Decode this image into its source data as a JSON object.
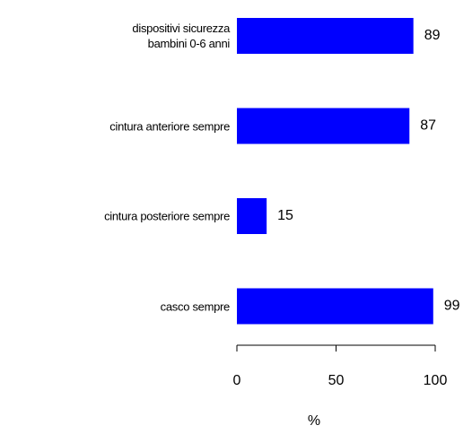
{
  "chart_data": {
    "type": "barh",
    "categories": [
      "dispositivi sicurezza\nbambini 0-6 anni",
      "cintura anteriore sempre",
      "cintura posteriore sempre",
      "casco sempre"
    ],
    "values": [
      89,
      87,
      15,
      99
    ],
    "color": "#0000ff",
    "xlim": [
      0,
      100
    ],
    "xticks": [
      0,
      50,
      100
    ],
    "x_label": "%"
  }
}
